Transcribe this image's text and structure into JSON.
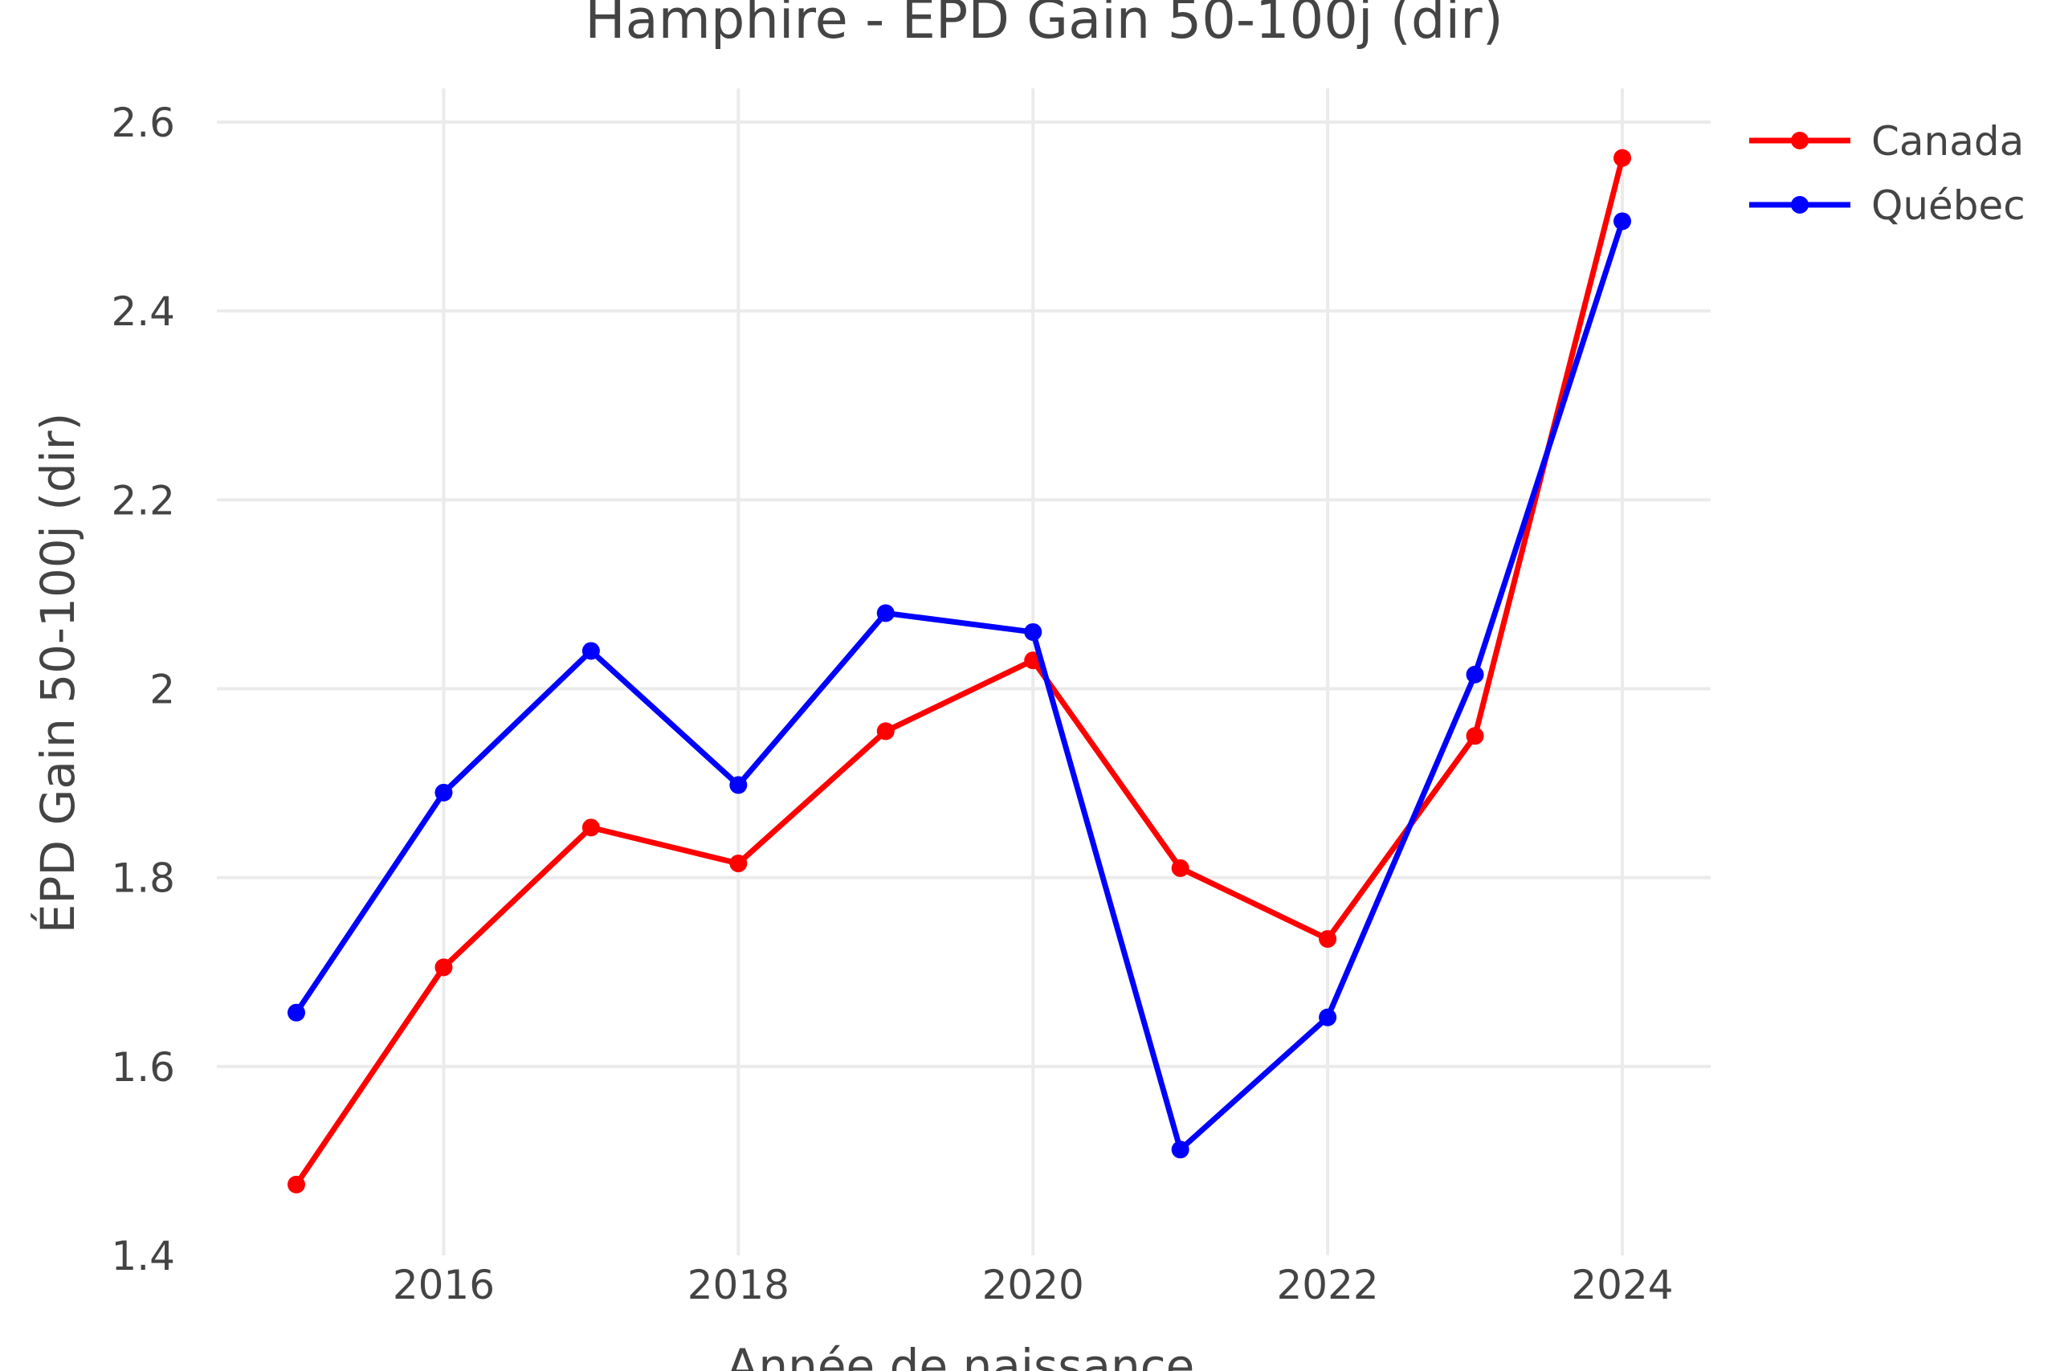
{
  "chart_data": {
    "type": "line",
    "title": "Hamphire - EPD Gain 50-100j (dir)",
    "xlabel": "Année de naissance",
    "ylabel": "ÉPD Gain 50-100j (dir)",
    "x": [
      2015,
      2016,
      2017,
      2018,
      2019,
      2020,
      2021,
      2022,
      2023,
      2024
    ],
    "xlim": [
      2014.6,
      2024.6
    ],
    "ylim": [
      1.4,
      2.64
    ],
    "x_ticks": [
      2016,
      2018,
      2020,
      2022,
      2024
    ],
    "x_tick_labels": [
      "2016",
      "2018",
      "2020",
      "2022",
      "2024"
    ],
    "y_ticks": [
      1.4,
      1.6,
      1.8,
      2.0,
      2.2,
      2.4,
      2.6
    ],
    "y_tick_labels": [
      "1.4",
      "1.6",
      "1.8",
      "2",
      "2.2",
      "2.4",
      "2.6"
    ],
    "grid": true,
    "legend_position": "top-right",
    "series": [
      {
        "name": "Canada",
        "color": "#ff0000",
        "values": [
          1.475,
          1.705,
          1.853,
          1.815,
          1.955,
          2.03,
          1.81,
          1.735,
          1.95,
          2.562
        ]
      },
      {
        "name": "Québec",
        "color": "#0000ff",
        "values": [
          1.657,
          1.89,
          2.04,
          1.898,
          2.08,
          2.06,
          1.512,
          1.652,
          2.015,
          2.495
        ]
      }
    ]
  }
}
